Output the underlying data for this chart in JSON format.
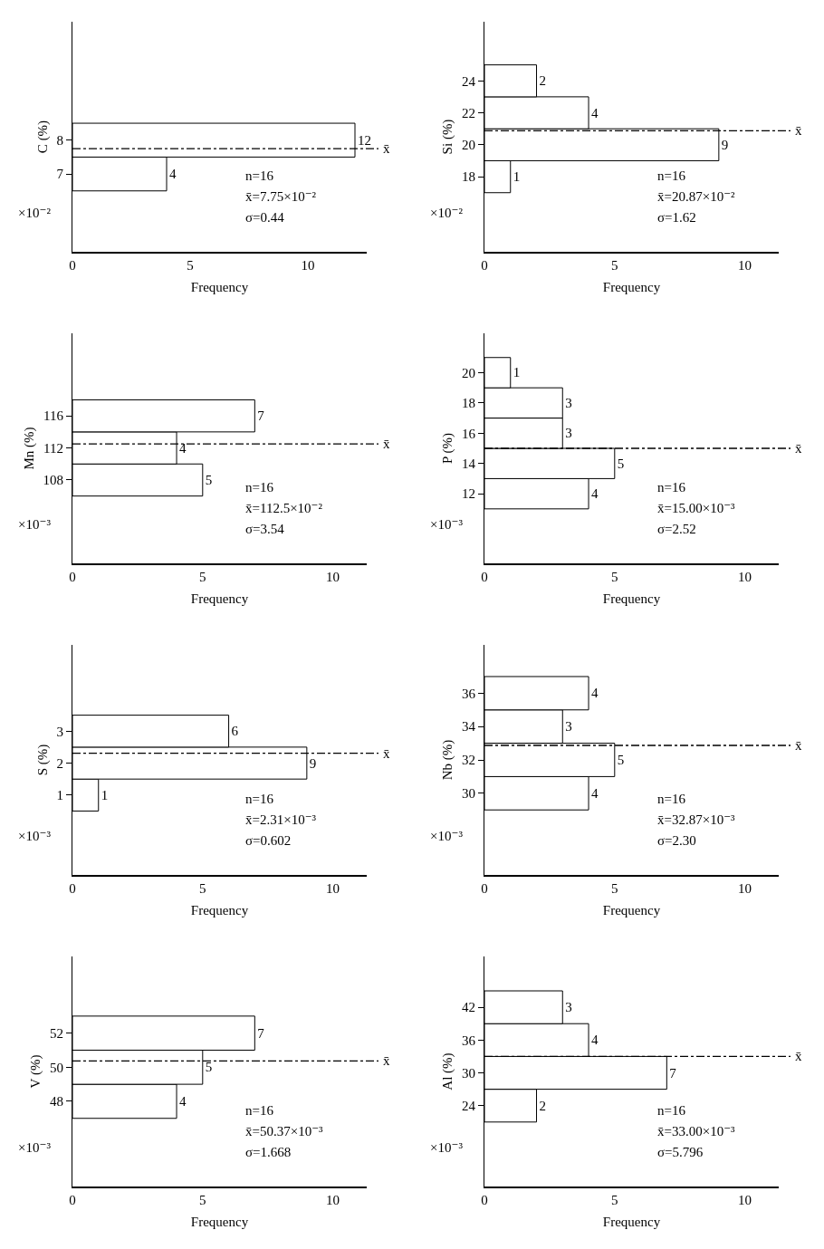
{
  "chart_data": [
    {
      "type": "histogram",
      "orientation": "horizontal",
      "ylabel": "C (%)",
      "xlabel": "Frequency",
      "bins": [
        6.5,
        7.5,
        8.5
      ],
      "values": [
        4,
        12
      ],
      "color": "#ffffff",
      "data_labels": true,
      "xlim": [
        0,
        12.5
      ],
      "xticks": [
        0,
        5,
        10
      ],
      "ylim": [
        4.7,
        11.5
      ],
      "yticks": [
        7,
        8
      ],
      "ref_lines": [
        {
          "axis": "y",
          "value": 7.75,
          "label": "x̄",
          "line_style": "dashed"
        }
      ],
      "annotations": [
        "×10⁻²",
        "n=16",
        "x̄=7.75×10⁻²",
        "σ=0.44"
      ]
    },
    {
      "type": "histogram",
      "orientation": "horizontal",
      "ylabel": "Si (%)",
      "xlabel": "Frequency",
      "bins": [
        17,
        19,
        21,
        23,
        25
      ],
      "values": [
        1,
        9,
        4,
        2
      ],
      "color": "#ffffff",
      "data_labels": true,
      "xlim": [
        0,
        11.3
      ],
      "xticks": [
        0,
        5,
        10
      ],
      "ylim": [
        13.3,
        27.7
      ],
      "yticks": [
        18,
        20,
        22,
        24
      ],
      "ref_lines": [
        {
          "axis": "y",
          "value": 20.87,
          "label": "x̄",
          "line_style": "dashed"
        }
      ],
      "annotations": [
        "×10⁻²",
        "n=16",
        "x̄=20.87×10⁻²",
        "σ=1.62"
      ]
    },
    {
      "type": "histogram",
      "orientation": "horizontal",
      "ylabel": "Mn (%)",
      "xlabel": "Frequency",
      "bins": [
        106,
        110,
        114,
        118
      ],
      "values": [
        5,
        4,
        7
      ],
      "color": "#ffffff",
      "data_labels": true,
      "xlim": [
        0,
        11.3
      ],
      "xticks": [
        0,
        5,
        10
      ],
      "ylim": [
        97.6,
        126.3
      ],
      "yticks": [
        108,
        112,
        116
      ],
      "ref_lines": [
        {
          "axis": "y",
          "value": 112.5,
          "label": "x̄",
          "line_style": "dashed"
        }
      ],
      "annotations": [
        "×10⁻³",
        "n=16",
        "x̄=112.5×10⁻²",
        "σ=3.54"
      ]
    },
    {
      "type": "histogram",
      "orientation": "horizontal",
      "ylabel": "P (%)",
      "xlabel": "Frequency",
      "bins": [
        11,
        13,
        15,
        17,
        19,
        21
      ],
      "values": [
        4,
        5,
        3,
        3,
        1
      ],
      "color": "#ffffff",
      "data_labels": true,
      "xlim": [
        0,
        11.3
      ],
      "xticks": [
        0,
        5,
        10
      ],
      "ylim": [
        7.4,
        22.6
      ],
      "yticks": [
        12,
        14,
        16,
        18,
        20
      ],
      "ref_lines": [
        {
          "axis": "y",
          "value": 15,
          "label": "x̄",
          "line_style": "dashed"
        }
      ],
      "annotations": [
        "×10⁻³",
        "n=16",
        "x̄=15.00×10⁻³",
        "σ=2.52"
      ]
    },
    {
      "type": "histogram",
      "orientation": "horizontal",
      "ylabel": "S (%)",
      "xlabel": "Frequency",
      "bins": [
        0.5,
        1.5,
        2.5,
        3.5
      ],
      "values": [
        1,
        9,
        6
      ],
      "color": "#ffffff",
      "data_labels": true,
      "xlim": [
        0,
        11.3
      ],
      "xticks": [
        0,
        5,
        10
      ],
      "ylim": [
        -1.5,
        5.7
      ],
      "yticks": [
        1,
        2,
        3
      ],
      "ref_lines": [
        {
          "axis": "y",
          "value": 2.31,
          "label": "x̄",
          "line_style": "dashed"
        }
      ],
      "annotations": [
        "×10⁻³",
        "n=16",
        "x̄=2.31×10⁻³",
        "σ=0.602"
      ]
    },
    {
      "type": "histogram",
      "orientation": "horizontal",
      "ylabel": "Nb (%)",
      "xlabel": "Frequency",
      "bins": [
        29,
        31,
        33,
        35,
        37
      ],
      "values": [
        4,
        5,
        3,
        4
      ],
      "color": "#ffffff",
      "data_labels": true,
      "xlim": [
        0,
        11.3
      ],
      "xticks": [
        0,
        5,
        10
      ],
      "ylim": [
        25.1,
        38.9
      ],
      "yticks": [
        30,
        32,
        34,
        36
      ],
      "ref_lines": [
        {
          "axis": "y",
          "value": 32.87,
          "label": "x̄",
          "line_style": "dashed"
        }
      ],
      "annotations": [
        "×10⁻³",
        "n=16",
        "x̄=32.87×10⁻³",
        "σ=2.30"
      ]
    },
    {
      "type": "histogram",
      "orientation": "horizontal",
      "ylabel": "V (%)",
      "xlabel": "Frequency",
      "bins": [
        47,
        49,
        51,
        53
      ],
      "values": [
        4,
        5,
        7
      ],
      "color": "#ffffff",
      "data_labels": true,
      "xlim": [
        0,
        11.3
      ],
      "xticks": [
        0,
        5,
        10
      ],
      "ylim": [
        43,
        56.5
      ],
      "yticks": [
        48,
        50,
        52
      ],
      "ref_lines": [
        {
          "axis": "y",
          "value": 50.37,
          "label": "x̄",
          "line_style": "dashed"
        }
      ],
      "annotations": [
        "×10⁻³",
        "n=16",
        "x̄=50.37×10⁻³",
        "σ=1.668"
      ]
    },
    {
      "type": "histogram",
      "orientation": "horizontal",
      "ylabel": "Al (%)",
      "xlabel": "Frequency",
      "bins": [
        21,
        27,
        33,
        39,
        45
      ],
      "values": [
        2,
        7,
        4,
        3
      ],
      "color": "#ffffff",
      "data_labels": true,
      "xlim": [
        0,
        11.3
      ],
      "xticks": [
        0,
        5,
        10
      ],
      "ylim": [
        9.2,
        51.3
      ],
      "yticks": [
        24,
        30,
        36,
        42
      ],
      "ref_lines": [
        {
          "axis": "y",
          "value": 33,
          "label": "x̄",
          "line_style": "dashed"
        }
      ],
      "annotations": [
        "×10⁻³",
        "n=16",
        "x̄=33.00×10⁻³",
        "σ=5.796"
      ]
    }
  ]
}
